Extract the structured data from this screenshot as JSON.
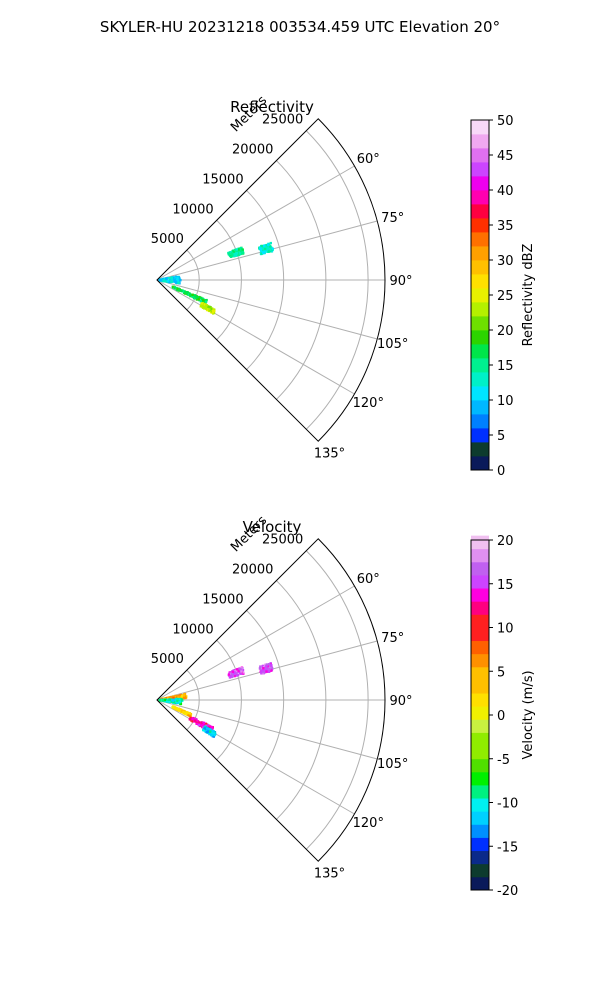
{
  "figure": {
    "suptitle": "SKYLER-HU  20231218  003534.459 UTC Elevation 20°"
  },
  "chart_data": [
    {
      "type": "polar-sector",
      "title": "Reflectivity",
      "radial_axis_label": "Meters",
      "radial_ticks": [
        5000,
        10000,
        15000,
        20000,
        25000
      ],
      "radial_max": 27000,
      "azimuth_range_deg": [
        45,
        135
      ],
      "azimuth_tick_labels": [
        "60°",
        "75°",
        "90°",
        "105°",
        "120°",
        "135°"
      ],
      "azimuth_ticks_deg": [
        60,
        75,
        90,
        105,
        120,
        135
      ],
      "grid": true,
      "colorbar": {
        "label": "Reflectivity dBZ",
        "range": [
          0,
          50
        ],
        "ticks": [
          0,
          5,
          10,
          15,
          20,
          25,
          30,
          35,
          40,
          45,
          50
        ]
      },
      "echo_regions": [
        {
          "az_deg": [
            69,
            73
          ],
          "range_m": [
            9000,
            10800
          ],
          "value": 16,
          "note": "cyan/green"
        },
        {
          "az_deg": [
            72,
            76
          ],
          "range_m": [
            12700,
            14200
          ],
          "value": 14,
          "note": "cyan"
        },
        {
          "az_deg": [
            80,
            100
          ],
          "range_m": [
            300,
            2800
          ],
          "value": 12,
          "note": "cyan"
        },
        {
          "az_deg": [
            112,
            116
          ],
          "range_m": [
            2000,
            6400
          ],
          "value": 18,
          "note": "green"
        },
        {
          "az_deg": [
            117,
            121
          ],
          "range_m": [
            6000,
            7800
          ],
          "value": 24,
          "note": "yellow-green"
        }
      ]
    },
    {
      "type": "polar-sector",
      "title": "Velocity",
      "radial_axis_label": "Meters",
      "radial_ticks": [
        5000,
        10000,
        15000,
        20000,
        25000
      ],
      "radial_max": 27000,
      "azimuth_range_deg": [
        45,
        135
      ],
      "azimuth_tick_labels": [
        "60°",
        "75°",
        "90°",
        "105°",
        "120°",
        "135°"
      ],
      "azimuth_ticks_deg": [
        60,
        75,
        90,
        105,
        120,
        135
      ],
      "grid": true,
      "colorbar": {
        "label": "Velocity (m/s)",
        "range": [
          -20,
          20
        ],
        "ticks": [
          -20,
          -15,
          -10,
          -5,
          0,
          5,
          10,
          15,
          20
        ]
      },
      "echo_regions": [
        {
          "az_deg": [
            69,
            73
          ],
          "range_m": [
            9000,
            10800
          ],
          "value": 16,
          "note": "violet"
        },
        {
          "az_deg": [
            72,
            76
          ],
          "range_m": [
            12700,
            14200
          ],
          "value": 16,
          "note": "violet"
        },
        {
          "az_deg": [
            78,
            86
          ],
          "range_m": [
            500,
            3500
          ],
          "value": 5,
          "note": "orange"
        },
        {
          "az_deg": [
            87,
            100
          ],
          "range_m": [
            300,
            3000
          ],
          "value": -10,
          "note": "cyan/green"
        },
        {
          "az_deg": [
            112,
            116
          ],
          "range_m": [
            2000,
            4500
          ],
          "value": 3,
          "note": "yellow/orange"
        },
        {
          "az_deg": [
            116,
            121
          ],
          "range_m": [
            4500,
            7500
          ],
          "value": 13,
          "note": "magenta"
        },
        {
          "az_deg": [
            119,
            123
          ],
          "range_m": [
            6500,
            8000
          ],
          "value": -12,
          "note": "cyan"
        }
      ]
    }
  ]
}
